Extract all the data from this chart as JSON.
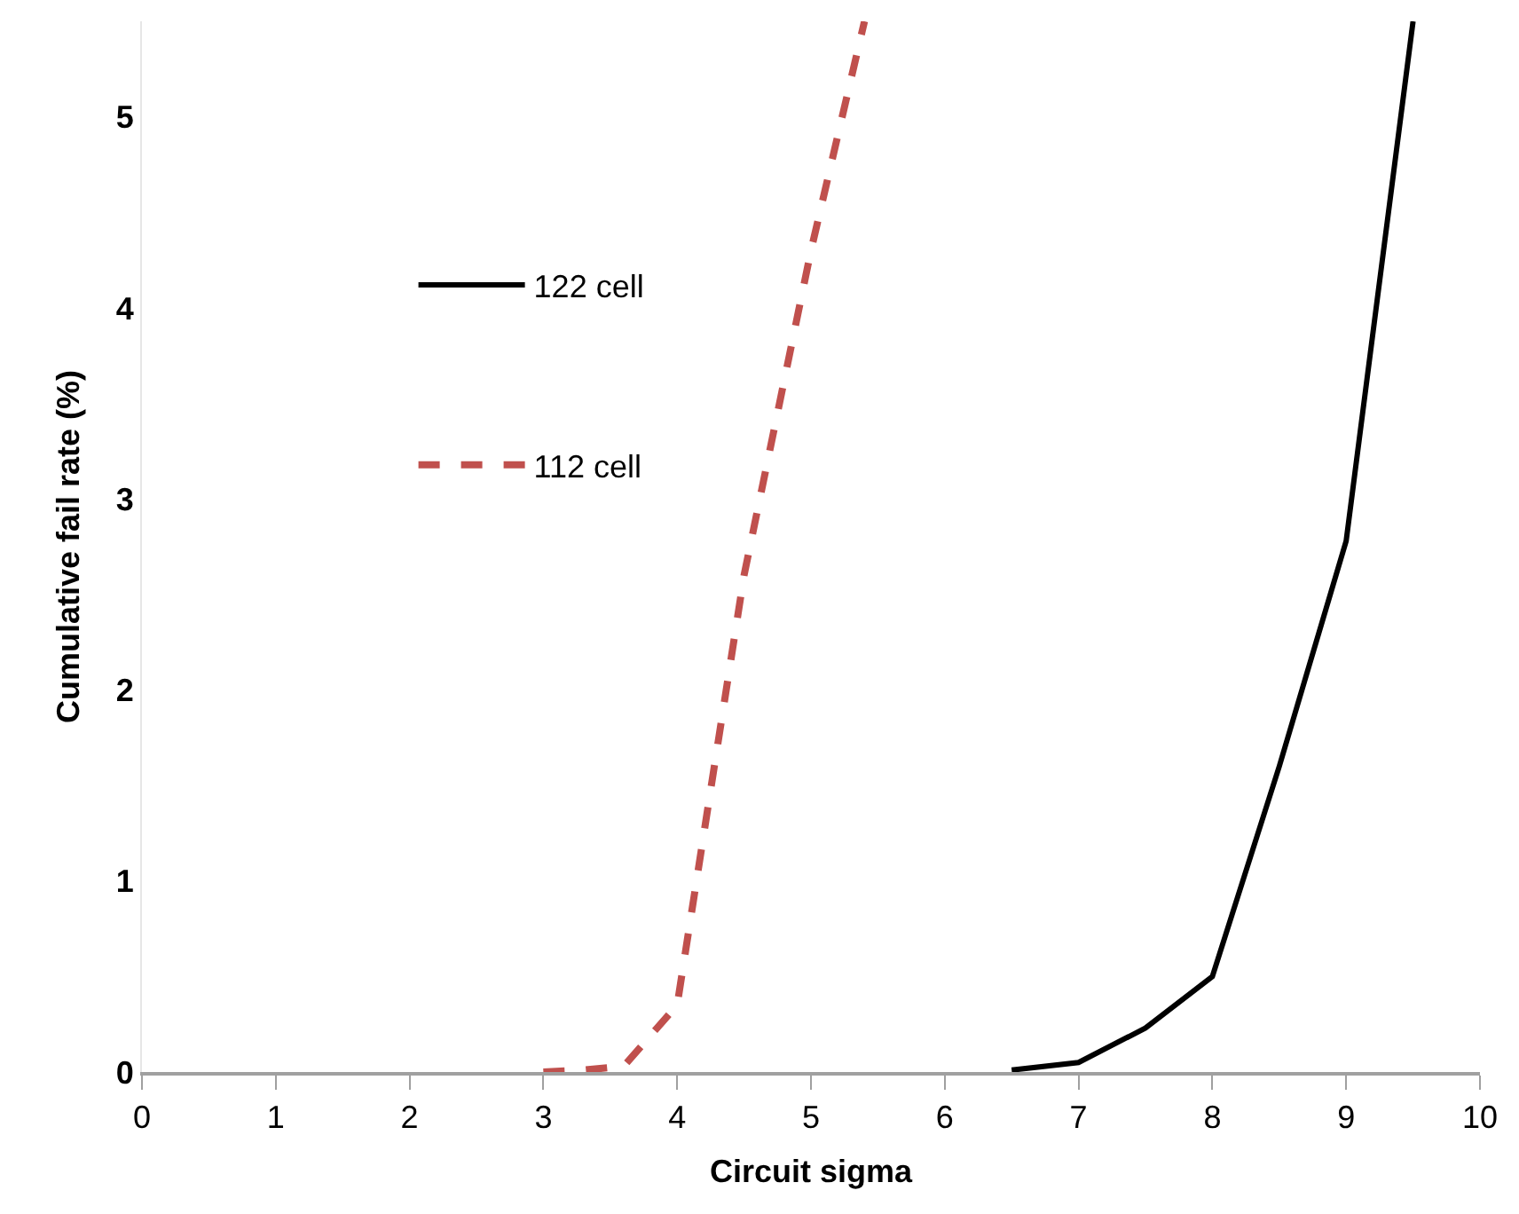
{
  "chart_data": {
    "type": "line",
    "xlabel": "Circuit sigma",
    "ylabel": "Cumulative fail rate (%)",
    "xlim": [
      0,
      10
    ],
    "xticks": [
      0,
      1,
      2,
      3,
      4,
      5,
      6,
      7,
      8,
      9,
      10
    ],
    "ylim": [
      0,
      5.5
    ],
    "yticks": [
      0,
      1,
      2,
      3,
      4,
      5
    ],
    "legend": "top left",
    "marker": "none",
    "series": [
      {
        "name": "122 cell",
        "color": "#000000",
        "line_style": "solid",
        "x": [
          6.5,
          7,
          7.5,
          8,
          8.5,
          9,
          9.5
        ],
        "values": [
          0.01,
          0.05,
          0.23,
          0.5,
          1.6,
          2.78,
          5.5
        ]
      },
      {
        "name": "112 cell",
        "color": "#c0504d",
        "line_style": "dashed",
        "x": [
          3,
          3.3,
          3.6,
          4,
          4.5,
          5,
          5.4
        ],
        "values": [
          0,
          0.01,
          0.03,
          0.35,
          2.6,
          4.3,
          5.5
        ]
      }
    ]
  }
}
